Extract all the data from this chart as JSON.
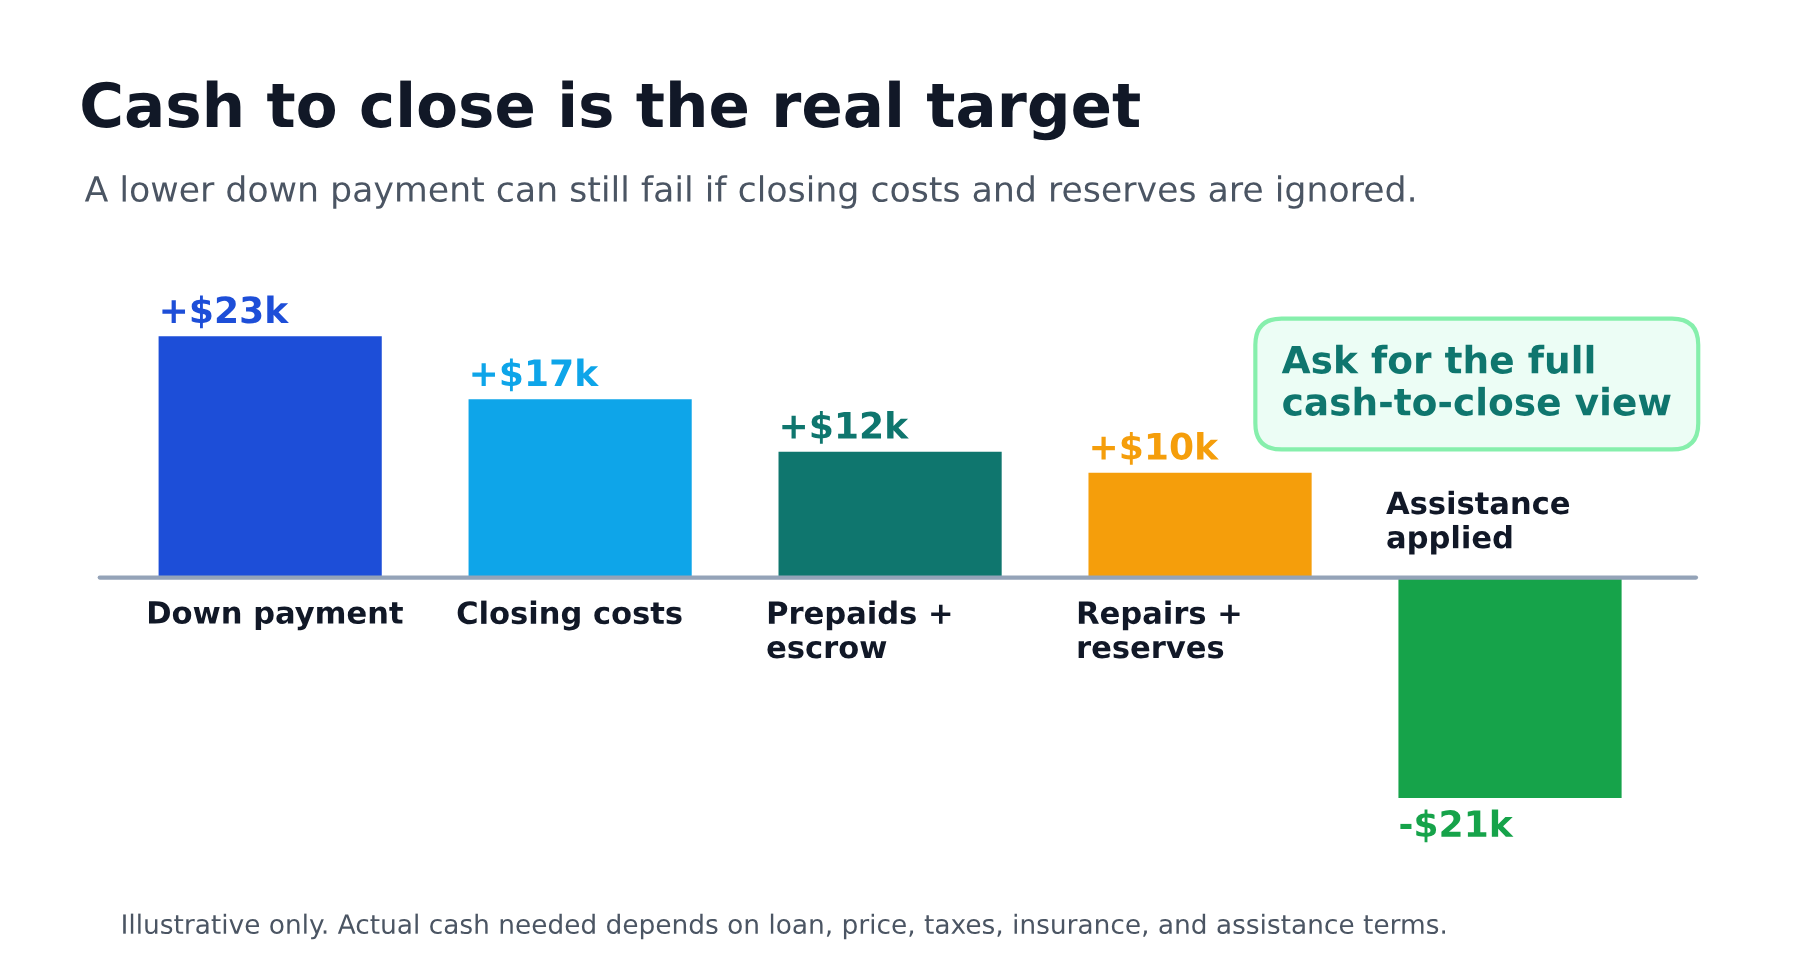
{
  "chart_data": {
    "type": "bar",
    "title": "Cash to close is the real target",
    "subtitle": "A lower down payment can still fail if closing costs and reserves are ignored.",
    "categories": [
      "Down payment",
      "Closing costs",
      "Prepaids +\nescrow",
      "Repairs +\nreserves",
      "Assistance\napplied"
    ],
    "values": [
      23,
      17,
      12,
      10,
      -21
    ],
    "colors": [
      "#1d4ed8",
      "#0ea5e9",
      "#0f766e",
      "#f59e0b",
      "#16a34a"
    ],
    "value_labels": [
      "+$23k",
      "+$17k",
      "+$12k",
      "+$10k",
      "-$21k"
    ],
    "annotations": [
      "Ask for the full\ncash-to-close view",
      "Illustrative only. Actual cash needed depends on loan, price, taxes, insurance, and assistance terms."
    ],
    "legend": false
  }
}
